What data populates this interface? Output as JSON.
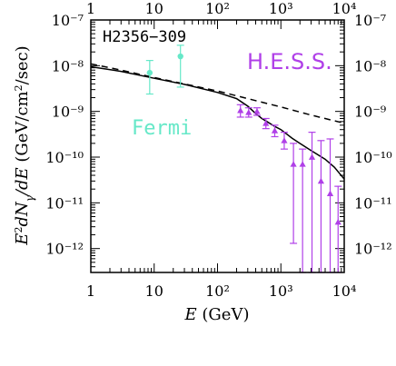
{
  "chart_data": {
    "type": "scatter",
    "source_label": "H2356−309",
    "xlabel": "E (GeV)",
    "ylabel": "E²dNγ/dE (GeV/cm²/sec)",
    "x_scale": "log",
    "y_scale": "log",
    "xlim": [
      1,
      10000
    ],
    "ylim": [
      3e-13,
      1e-07
    ],
    "x_ticks": [
      {
        "value": 1,
        "label": "1"
      },
      {
        "value": 10,
        "label": "10"
      },
      {
        "value": 100,
        "label": "10²"
      },
      {
        "value": 1000,
        "label": "10³"
      },
      {
        "value": 10000,
        "label": "10⁴"
      }
    ],
    "y_ticks": [
      {
        "value": 1e-07,
        "label": "10⁻⁷"
      },
      {
        "value": 1e-08,
        "label": "10⁻⁸"
      },
      {
        "value": 1e-09,
        "label": "10⁻⁹"
      },
      {
        "value": 1e-10,
        "label": "10⁻¹⁰"
      },
      {
        "value": 1e-11,
        "label": "10⁻¹¹"
      },
      {
        "value": 1e-12,
        "label": "10⁻¹²"
      }
    ],
    "series": [
      {
        "name": "Fermi",
        "color": "#66e8c8",
        "marker": "circle",
        "points": [
          {
            "x": 8.5,
            "y": 7e-09,
            "y_low": 2.4e-09,
            "y_high": 1.3e-08
          },
          {
            "x": 26,
            "y": 1.6e-08,
            "y_low": 3.4e-09,
            "y_high": 2.8e-08
          }
        ]
      },
      {
        "name": "H.E.S.S.",
        "color": "#b040e8",
        "marker": "triangle",
        "points": [
          {
            "x": 230,
            "y": 1.05e-09,
            "y_low": 7.5e-10,
            "y_high": 1.4e-09
          },
          {
            "x": 310,
            "y": 9.5e-10,
            "y_low": 7.5e-10,
            "y_high": 1.2e-09
          },
          {
            "x": 420,
            "y": 1e-09,
            "y_low": 8.2e-10,
            "y_high": 1.2e-09
          },
          {
            "x": 580,
            "y": 5.5e-10,
            "y_low": 4.2e-10,
            "y_high": 7e-10
          },
          {
            "x": 800,
            "y": 3.8e-10,
            "y_low": 2.8e-10,
            "y_high": 5e-10
          },
          {
            "x": 1130,
            "y": 2.3e-10,
            "y_low": 1.5e-10,
            "y_high": 3.5e-10
          },
          {
            "x": 1580,
            "y": 7e-11,
            "y_low": 1.3e-12,
            "y_high": 2e-10
          },
          {
            "x": 2200,
            "y": 7e-11,
            "y_low": 3e-13,
            "y_high": 1.5e-10
          },
          {
            "x": 3100,
            "y": 1e-10,
            "y_low": 3e-13,
            "y_high": 3.5e-10
          },
          {
            "x": 4300,
            "y": 3e-11,
            "y_low": 3e-13,
            "y_high": 2.3e-10
          },
          {
            "x": 6000,
            "y": 1.6e-11,
            "y_low": 3e-13,
            "y_high": 2.5e-10
          },
          {
            "x": 8000,
            "y": 3.8e-12,
            "y_low": 3e-13,
            "y_high": 2.3e-11
          }
        ]
      }
    ],
    "curves": [
      {
        "style": "solid",
        "color": "#000000",
        "x": [
          1,
          3,
          10,
          30,
          100,
          200,
          300,
          400,
          500,
          600,
          800,
          1000,
          1500,
          2000,
          3000,
          5000,
          7000,
          10000
        ],
        "y": [
          9.5e-09,
          7.5e-09,
          5.3e-09,
          3.9e-09,
          2.6e-09,
          1.9e-09,
          1.3e-09,
          9e-10,
          7e-10,
          6e-10,
          4.7e-10,
          4e-10,
          2.6e-10,
          2e-10,
          1.4e-10,
          9e-11,
          6e-11,
          3.3e-11
        ]
      },
      {
        "style": "dashed",
        "color": "#000000",
        "x": [
          1,
          3,
          10,
          30,
          100,
          300,
          1000,
          3000,
          10000
        ],
        "y": [
          1.1e-08,
          8e-09,
          5.5e-09,
          4e-09,
          2.8e-09,
          1.9e-09,
          1.25e-09,
          8.3e-10,
          5.5e-10
        ]
      }
    ]
  }
}
